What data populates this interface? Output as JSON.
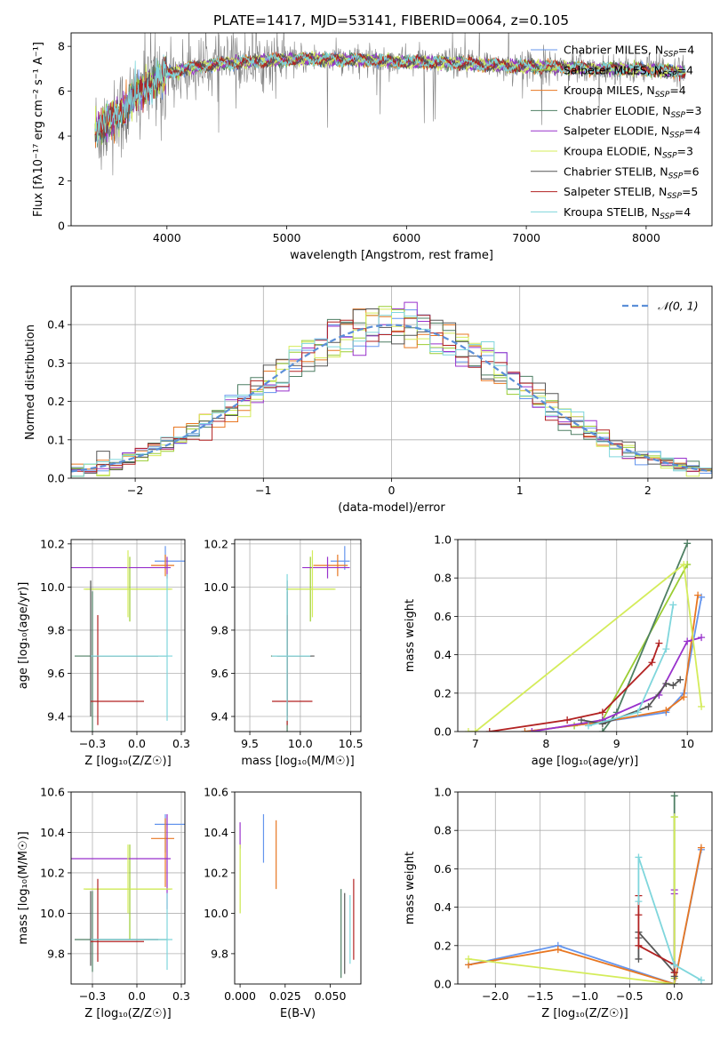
{
  "figure_title": "PLATE=1417, MJD=53141, FIBERID=0064, z=0.105",
  "series_styles": [
    {
      "name": "Chabrier MILES",
      "nssp": "4",
      "color": "#6495ED"
    },
    {
      "name": "Salpeter MILES",
      "nssp": "4",
      "color": "#9ACD32"
    },
    {
      "name": "Kroupa MILES",
      "nssp": "4",
      "color": "#E87722"
    },
    {
      "name": "Chabrier ELODIE",
      "nssp": "3",
      "color": "#4E7F63"
    },
    {
      "name": "Salpeter ELODIE",
      "nssp": "4",
      "color": "#9932CC"
    },
    {
      "name": "Kroupa ELODIE",
      "nssp": "3",
      "color": "#D4EC5A"
    },
    {
      "name": "Chabrier STELIB",
      "nssp": "6",
      "color": "#555555"
    },
    {
      "name": "Salpeter STELIB",
      "nssp": "5",
      "color": "#B22222"
    },
    {
      "name": "Kroupa STELIB",
      "nssp": "4",
      "color": "#7FD6DC"
    }
  ],
  "chart_data": [
    {
      "id": "spectrum",
      "type": "line",
      "title": "PLATE=1417, MJD=53141, FIBERID=0064, z=0.105",
      "xlabel": "wavelength [Angstrom, rest frame]",
      "ylabel": "Flux [fλ10⁻¹⁷ erg cm⁻² s⁻¹ A⁻¹]",
      "xlim": [
        3200,
        8550
      ],
      "ylim": [
        0,
        8.6
      ],
      "xticks": [
        4000,
        5000,
        6000,
        7000,
        8000
      ],
      "yticks": [
        0,
        2,
        4,
        6,
        8
      ],
      "grid": false,
      "legend_position": "right",
      "data_color": "#808080",
      "data_x": [
        3400,
        3500,
        3600,
        3700,
        3800,
        3900,
        4000,
        4200,
        4400,
        4600,
        4800,
        5000,
        5200,
        5400,
        5600,
        5800,
        6000,
        6200,
        6400,
        6600,
        6800,
        7000,
        7200,
        7400,
        7600,
        7800,
        8000,
        8200,
        8330
      ],
      "data_y": [
        4.1,
        4.5,
        4.9,
        5.4,
        6.0,
        6.4,
        6.7,
        7.0,
        7.2,
        7.3,
        7.4,
        7.4,
        7.45,
        7.4,
        7.4,
        7.35,
        7.35,
        7.3,
        7.25,
        7.2,
        7.15,
        7.15,
        7.1,
        7.05,
        7.05,
        7.0,
        7.0,
        6.95,
        6.9
      ],
      "model_x": [
        3400,
        3500,
        3600,
        3700,
        3800,
        3900,
        4000,
        4200,
        4400,
        4600,
        4800,
        5000,
        5200,
        5400,
        5600,
        5800,
        6000,
        6200,
        6400,
        6600,
        6800,
        7000,
        7200,
        7400,
        7600,
        7800,
        8000,
        8200,
        8330
      ],
      "model_y": [
        4.2,
        4.6,
        5.0,
        5.5,
        6.1,
        6.5,
        6.8,
        7.05,
        7.2,
        7.3,
        7.35,
        7.4,
        7.45,
        7.4,
        7.4,
        7.35,
        7.3,
        7.3,
        7.25,
        7.2,
        7.15,
        7.1,
        7.1,
        7.05,
        7.0,
        7.0,
        6.95,
        6.9,
        6.85
      ]
    },
    {
      "id": "residuals",
      "type": "histogram",
      "xlabel": "(data-model)/error",
      "ylabel": "Normed distribution",
      "xlim": [
        -2.5,
        2.5
      ],
      "ylim": [
        0,
        0.5
      ],
      "xticks": [
        -2,
        -1,
        0,
        1,
        2
      ],
      "yticks": [
        0,
        0.1,
        0.2,
        0.3,
        0.4
      ],
      "grid": true,
      "legend_position": "top-right",
      "legend_label": "𝒩(0, 1)",
      "bin_width": 0.1
    },
    {
      "id": "age_vs_Z",
      "type": "errorbar",
      "xlabel": "Z [log₁₀(Z/Z☉)]",
      "ylabel": "age  [log₁₀(age/yr)]",
      "xlim": [
        -0.37,
        0.27
      ],
      "ylim": [
        9.33,
        10.22
      ],
      "xticks": [
        -0.25,
        0.0,
        0.25
      ],
      "yticks": [
        9.4,
        9.6,
        9.8,
        10.0,
        10.2
      ],
      "grid": true,
      "points": [
        {
          "series": 0,
          "x": 0.16,
          "xerr": [
            0.06,
            0.12
          ],
          "y": 10.12,
          "yerr": [
            0.04,
            0.07
          ]
        },
        {
          "series": 1,
          "x": -0.04,
          "xerr": [
            0.25,
            0.23
          ],
          "y": 9.99,
          "yerr": [
            0.15,
            0.15
          ]
        },
        {
          "series": 2,
          "x": 0.16,
          "xerr": [
            0.08,
            0.05
          ],
          "y": 10.1,
          "yerr": [
            0.05,
            0.05
          ]
        },
        {
          "series": 3,
          "x": -0.25,
          "xerr": [
            0.1,
            0.42
          ],
          "y": 9.68,
          "yerr": [
            0.42,
            0.3
          ]
        },
        {
          "series": 4,
          "x": 0.17,
          "xerr": [
            0.55,
            0.02
          ],
          "y": 10.09,
          "yerr": [
            0.05,
            0.05
          ]
        },
        {
          "series": 5,
          "x": -0.05,
          "xerr": [
            0.25,
            0.25
          ],
          "y": 9.99,
          "yerr": [
            0.13,
            0.18
          ]
        },
        {
          "series": 6,
          "x": -0.26,
          "xerr": [
            0.0,
            0.38
          ],
          "y": 9.68,
          "yerr": [
            0.28,
            0.35
          ]
        },
        {
          "series": 7,
          "x": -0.22,
          "xerr": [
            0.04,
            0.26
          ],
          "y": 9.47,
          "yerr": [
            0.11,
            0.4
          ]
        },
        {
          "series": 8,
          "x": 0.17,
          "xerr": [
            0.43,
            0.03
          ],
          "y": 9.68,
          "yerr": [
            0.3,
            0.38
          ]
        }
      ]
    },
    {
      "id": "age_vs_mass",
      "type": "errorbar",
      "xlabel": "mass [log₁₀(M/M☉)]",
      "ylabel": "",
      "xlim": [
        9.35,
        10.6
      ],
      "ylim": [
        9.33,
        10.22
      ],
      "xticks": [
        9.5,
        10.0,
        10.5
      ],
      "yticks": [
        9.4,
        9.6,
        9.8,
        10.0,
        10.2
      ],
      "grid": true,
      "points": [
        {
          "series": 0,
          "x": 10.44,
          "xerr": [
            0.14,
            0.05
          ],
          "y": 10.12,
          "yerr": [
            0.04,
            0.07
          ]
        },
        {
          "series": 1,
          "x": 10.1,
          "xerr": [
            0.24,
            0.24
          ],
          "y": 9.99,
          "yerr": [
            0.15,
            0.15
          ]
        },
        {
          "series": 2,
          "x": 10.37,
          "xerr": [
            0.24,
            0.1
          ],
          "y": 10.1,
          "yerr": [
            0.05,
            0.05
          ]
        },
        {
          "series": 3,
          "x": 9.87,
          "xerr": [
            0.16,
            0.24
          ],
          "y": 9.68,
          "yerr": [
            0.42,
            0.3
          ]
        },
        {
          "series": 4,
          "x": 10.27,
          "xerr": [
            0.25,
            0.22
          ],
          "y": 10.09,
          "yerr": [
            0.05,
            0.05
          ]
        },
        {
          "series": 5,
          "x": 10.12,
          "xerr": [
            0.24,
            0.23
          ],
          "y": 9.99,
          "yerr": [
            0.13,
            0.18
          ]
        },
        {
          "series": 6,
          "x": 9.87,
          "xerr": [
            0.1,
            0.27
          ],
          "y": 9.68,
          "yerr": [
            0.28,
            0.35
          ]
        },
        {
          "series": 7,
          "x": 9.87,
          "xerr": [
            0.15,
            0.25
          ],
          "y": 9.47,
          "yerr": [
            0.11,
            0.4
          ]
        },
        {
          "series": 8,
          "x": 9.87,
          "xerr": [
            0.15,
            0.23
          ],
          "y": 9.68,
          "yerr": [
            0.3,
            0.38
          ]
        }
      ]
    },
    {
      "id": "weight_vs_age",
      "type": "line",
      "xlabel": "age  [log₁₀(age/yr)]",
      "ylabel": "mass weight",
      "xlim": [
        6.75,
        10.35
      ],
      "ylim": [
        0,
        1
      ],
      "xticks": [
        7,
        8,
        9,
        10
      ],
      "yticks": [
        0,
        0.2,
        0.4,
        0.6,
        0.8,
        1.0
      ],
      "grid": true,
      "series": [
        {
          "series": 0,
          "x": [
            7.7,
            8.8,
            9.7,
            9.95,
            10.2
          ],
          "y": [
            0.0,
            0.05,
            0.1,
            0.2,
            0.7
          ]
        },
        {
          "series": 1,
          "x": [
            8.4,
            8.8,
            10.0
          ],
          "y": [
            0.03,
            0.06,
            0.87
          ]
        },
        {
          "series": 2,
          "x": [
            7.7,
            8.8,
            9.7,
            9.95,
            10.15
          ],
          "y": [
            0.0,
            0.05,
            0.11,
            0.18,
            0.71
          ]
        },
        {
          "series": 3,
          "x": [
            8.8,
            9.0,
            10.0
          ],
          "y": [
            0.0,
            0.1,
            0.98
          ]
        },
        {
          "series": 4,
          "x": [
            7.8,
            8.8,
            9.6,
            10.0,
            10.2
          ],
          "y": [
            0.0,
            0.06,
            0.19,
            0.47,
            0.49
          ]
        },
        {
          "series": 5,
          "x": [
            6.9,
            7.0,
            9.95,
            10.2
          ],
          "y": [
            0.0,
            0.0,
            0.87,
            0.13
          ]
        },
        {
          "series": 6,
          "x": [
            8.5,
            8.8,
            9.45,
            9.7,
            9.8,
            9.9
          ],
          "y": [
            0.06,
            0.04,
            0.13,
            0.25,
            0.24,
            0.27
          ]
        },
        {
          "series": 7,
          "x": [
            7.2,
            8.3,
            8.8,
            9.5,
            9.6
          ],
          "y": [
            0.0,
            0.06,
            0.1,
            0.36,
            0.46
          ]
        },
        {
          "series": 8,
          "x": [
            8.6,
            9.3,
            9.7,
            9.8
          ],
          "y": [
            0.03,
            0.1,
            0.43,
            0.66
          ]
        }
      ]
    },
    {
      "id": "mass_vs_Z",
      "type": "errorbar",
      "xlabel": "Z [log₁₀(Z/Z☉)]",
      "ylabel": "mass [log₁₀(M/M☉)]",
      "xlim": [
        -0.37,
        0.27
      ],
      "ylim": [
        9.65,
        10.6
      ],
      "xticks": [
        -0.25,
        0.0,
        0.25
      ],
      "yticks": [
        9.8,
        10.0,
        10.2,
        10.4,
        10.6
      ],
      "grid": true,
      "points": [
        {
          "series": 0,
          "x": 0.16,
          "xerr": [
            0.06,
            0.12
          ],
          "y": 10.44,
          "yerr": [
            0.14,
            0.05
          ]
        },
        {
          "series": 1,
          "x": -0.04,
          "xerr": [
            0.25,
            0.23
          ],
          "y": 10.12,
          "yerr": [
            0.25,
            0.22
          ]
        },
        {
          "series": 2,
          "x": 0.16,
          "xerr": [
            0.08,
            0.05
          ],
          "y": 10.37,
          "yerr": [
            0.24,
            0.1
          ]
        },
        {
          "series": 3,
          "x": -0.25,
          "xerr": [
            0.1,
            0.42
          ],
          "y": 9.87,
          "yerr": [
            0.16,
            0.24
          ]
        },
        {
          "series": 4,
          "x": 0.17,
          "xerr": [
            0.55,
            0.02
          ],
          "y": 10.27,
          "yerr": [
            0.25,
            0.22
          ]
        },
        {
          "series": 5,
          "x": -0.05,
          "xerr": [
            0.25,
            0.25
          ],
          "y": 10.12,
          "yerr": [
            0.12,
            0.22
          ]
        },
        {
          "series": 6,
          "x": -0.26,
          "xerr": [
            0.0,
            0.38
          ],
          "y": 9.87,
          "yerr": [
            0.13,
            0.24
          ]
        },
        {
          "series": 7,
          "x": -0.22,
          "xerr": [
            0.04,
            0.26
          ],
          "y": 9.86,
          "yerr": [
            0.1,
            0.31
          ]
        },
        {
          "series": 8,
          "x": 0.17,
          "xerr": [
            0.43,
            0.03
          ],
          "y": 9.87,
          "yerr": [
            0.15,
            0.23
          ]
        }
      ]
    },
    {
      "id": "mass_vs_ebv",
      "type": "errorbar",
      "xlabel": "E(B-V)",
      "ylabel": "",
      "xlim": [
        -0.003,
        0.067
      ],
      "ylim": [
        9.65,
        10.6
      ],
      "xticks": [
        0.0,
        0.025,
        0.05
      ],
      "yticks": [
        9.8,
        10.0,
        10.2,
        10.4,
        10.6
      ],
      "grid": false,
      "points": [
        {
          "series": 0,
          "x": 0.013,
          "y": 10.37,
          "yerr": [
            0.12,
            0.12
          ]
        },
        {
          "series": 1,
          "x": 0.0,
          "y": 10.12,
          "yerr": [
            0.12,
            0.22
          ]
        },
        {
          "series": 2,
          "x": 0.02,
          "y": 10.3,
          "yerr": [
            0.18,
            0.16
          ]
        },
        {
          "series": 3,
          "x": 0.056,
          "y": 9.89,
          "yerr": [
            0.21,
            0.23
          ]
        },
        {
          "series": 4,
          "x": 0.0,
          "y": 10.37,
          "yerr": [
            0.05,
            0.08
          ]
        },
        {
          "series": 5,
          "x": 0.0,
          "y": 10.17,
          "yerr": [
            0.17,
            0.17
          ]
        },
        {
          "series": 6,
          "x": 0.058,
          "y": 9.92,
          "yerr": [
            0.22,
            0.18
          ]
        },
        {
          "series": 7,
          "x": 0.063,
          "y": 9.97,
          "yerr": [
            0.2,
            0.2
          ]
        },
        {
          "series": 8,
          "x": 0.061,
          "y": 9.89,
          "yerr": [
            0.14,
            0.2
          ]
        }
      ]
    },
    {
      "id": "weight_vs_Z",
      "type": "line",
      "xlabel": "Z [log₁₀(Z/Z☉)]",
      "ylabel": "mass weight",
      "xlim": [
        -2.42,
        0.42
      ],
      "ylim": [
        0,
        1
      ],
      "xticks": [
        -2.0,
        -1.5,
        -1.0,
        -0.5,
        0.0
      ],
      "yticks": [
        0,
        0.2,
        0.4,
        0.6,
        0.8,
        1.0
      ],
      "grid": true,
      "series": [
        {
          "series": 0,
          "x": [
            -2.3,
            -1.3,
            0.0,
            0.3
          ],
          "y": [
            0.1,
            0.2,
            0.0,
            0.7
          ]
        },
        {
          "series": 1,
          "x": [
            0.0,
            0.0
          ],
          "y": [
            0.03,
            0.87
          ]
        },
        {
          "series": 2,
          "x": [
            -2.3,
            -1.3,
            0.0,
            0.3
          ],
          "y": [
            0.1,
            0.18,
            0.0,
            0.71
          ]
        },
        {
          "series": 3,
          "x": [
            0.0,
            0.0
          ],
          "y": [
            0.0,
            0.98
          ]
        },
        {
          "series": 4,
          "x": [
            0.0,
            0.0,
            0.0
          ],
          "y": [
            0.0,
            0.47,
            0.49
          ]
        },
        {
          "series": 5,
          "x": [
            -2.3,
            0.0,
            0.0
          ],
          "y": [
            0.13,
            0.0,
            0.87
          ]
        },
        {
          "series": 6,
          "x": [
            -0.4,
            -0.4,
            -0.4,
            0.0,
            0.0
          ],
          "y": [
            0.13,
            0.24,
            0.27,
            0.06,
            0.04
          ]
        },
        {
          "series": 7,
          "x": [
            -0.4,
            -0.4,
            -0.4,
            0.0,
            0.0
          ],
          "y": [
            0.36,
            0.46,
            0.2,
            0.1,
            0.06
          ]
        },
        {
          "series": 8,
          "x": [
            -0.4,
            -0.4,
            0.0,
            0.3
          ],
          "y": [
            0.43,
            0.66,
            0.1,
            0.02
          ]
        }
      ]
    }
  ]
}
